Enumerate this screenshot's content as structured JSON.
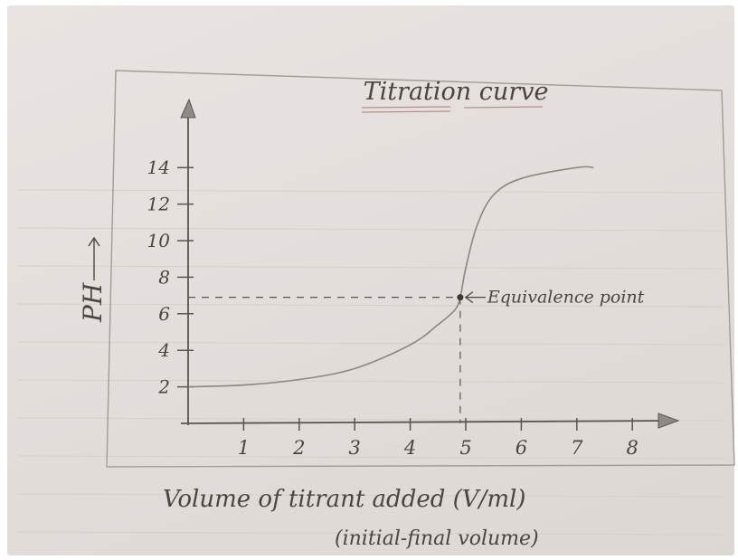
{
  "chart_data": {
    "type": "line",
    "title": "Titration curve",
    "xlabel": "Volume of titrant added (V/ml)",
    "xlabel_note": "(initial-final volume)",
    "ylabel": "PH",
    "x_ticks": [
      "1",
      "2",
      "3",
      "4",
      "5",
      "6",
      "7",
      "8"
    ],
    "y_ticks": [
      "2",
      "4",
      "6",
      "8",
      "10",
      "12",
      "14"
    ],
    "xlim": [
      0,
      8.8
    ],
    "ylim": [
      0,
      16
    ],
    "grid": false,
    "x": [
      0,
      1,
      2,
      3,
      4,
      4.5,
      4.8,
      4.9,
      5.0,
      5.2,
      5.5,
      6.0,
      7.0,
      7.3
    ],
    "y": [
      2.0,
      2.1,
      2.4,
      3.0,
      4.3,
      5.4,
      6.2,
      6.9,
      8.5,
      10.8,
      12.5,
      13.4,
      14.0,
      14.0
    ],
    "annotation": {
      "label": "Equivalence point",
      "x": 4.9,
      "y": 6.9
    },
    "colors": {
      "paper": "#e5e0dd",
      "pencil": "#4a4541",
      "curve": "#8c8580"
    }
  }
}
